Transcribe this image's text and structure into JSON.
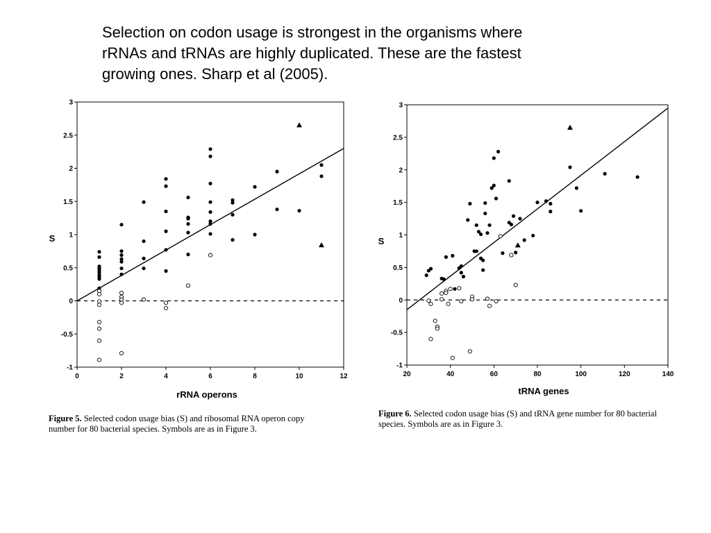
{
  "slide": {
    "title_lines": [
      "Selection on codon usage is strongest in the organisms where",
      "rRNAs and tRNAs are highly duplicated. These are the fastest",
      "growing ones. Sharp et al (2005)."
    ]
  },
  "chart_data": [
    {
      "type": "scatter",
      "xlabel": "rRNA operons",
      "ylabel": "S",
      "xlim": [
        0,
        12
      ],
      "ylim": [
        -1,
        3
      ],
      "x_ticks": [
        "0",
        "2",
        "4",
        "6",
        "8",
        "10",
        "12"
      ],
      "y_ticks": [
        "-1",
        "-0.5",
        "0",
        "0.5",
        "1",
        "1.5",
        "2",
        "2.5",
        "3"
      ],
      "reference_line": {
        "y": 0,
        "style": "dashed"
      },
      "regression_line": {
        "x": [
          0,
          12
        ],
        "y": [
          0.0,
          2.3
        ]
      },
      "caption": {
        "label": "Figure 5.",
        "text_lines": [
          "Selected codon usage bias (S) and ribosomal RNA operon copy",
          "number for 80 bacterial species. Symbols are as in Figure 3."
        ]
      },
      "series": [
        {
          "marker": "filled-circle",
          "points": [
            [
              1,
              0.74
            ],
            [
              1,
              0.66
            ],
            [
              1,
              0.52
            ],
            [
              1,
              0.49
            ],
            [
              1,
              0.46
            ],
            [
              1,
              0.43
            ],
            [
              1,
              0.39
            ],
            [
              1,
              0.36
            ],
            [
              1,
              0.33
            ],
            [
              1,
              0.19
            ],
            [
              1,
              0.16
            ],
            [
              2,
              1.15
            ],
            [
              2,
              0.75
            ],
            [
              2,
              0.69
            ],
            [
              2,
              0.63
            ],
            [
              2,
              0.59
            ],
            [
              2,
              0.49
            ],
            [
              2,
              0.4
            ],
            [
              3,
              1.49
            ],
            [
              3,
              0.9
            ],
            [
              3,
              0.64
            ],
            [
              3,
              0.49
            ],
            [
              4,
              1.84
            ],
            [
              4,
              1.73
            ],
            [
              4,
              1.35
            ],
            [
              4,
              1.05
            ],
            [
              4,
              0.77
            ],
            [
              4,
              0.45
            ],
            [
              5,
              1.56
            ],
            [
              5,
              1.26
            ],
            [
              5,
              1.24
            ],
            [
              5,
              1.16
            ],
            [
              5,
              1.03
            ],
            [
              5,
              0.7
            ],
            [
              6,
              2.29
            ],
            [
              6,
              2.18
            ],
            [
              6,
              1.77
            ],
            [
              6,
              1.49
            ],
            [
              6,
              1.34
            ],
            [
              6,
              1.2
            ],
            [
              6,
              1.16
            ],
            [
              6,
              1.01
            ],
            [
              7,
              1.52
            ],
            [
              7,
              1.48
            ],
            [
              7,
              1.3
            ],
            [
              7,
              0.92
            ],
            [
              8,
              1.72
            ],
            [
              8,
              1.0
            ],
            [
              9,
              1.95
            ],
            [
              9,
              1.38
            ],
            [
              10,
              1.36
            ],
            [
              11,
              2.05
            ],
            [
              11,
              1.88
            ]
          ]
        },
        {
          "marker": "open-circle",
          "points": [
            [
              1,
              0.15
            ],
            [
              1,
              0.1
            ],
            [
              1,
              -0.01
            ],
            [
              1,
              -0.06
            ],
            [
              1,
              -0.32
            ],
            [
              1,
              -0.42
            ],
            [
              1,
              -0.6
            ],
            [
              1,
              -0.89
            ],
            [
              2,
              0.12
            ],
            [
              2,
              0.06
            ],
            [
              2,
              0.02
            ],
            [
              2,
              -0.03
            ],
            [
              2,
              -0.79
            ],
            [
              3,
              0.02
            ],
            [
              4,
              -0.03
            ],
            [
              4,
              -0.11
            ],
            [
              5,
              0.23
            ],
            [
              6,
              0.69
            ]
          ]
        },
        {
          "marker": "filled-triangle",
          "points": [
            [
              10,
              2.65
            ],
            [
              11,
              0.84
            ]
          ]
        }
      ]
    },
    {
      "type": "scatter",
      "xlabel": "tRNA genes",
      "ylabel": "S",
      "xlim": [
        20,
        140
      ],
      "ylim": [
        -1,
        3
      ],
      "x_ticks": [
        "20",
        "40",
        "60",
        "80",
        "100",
        "120",
        "140"
      ],
      "y_ticks": [
        "-1",
        "-0.5",
        "0",
        "0.5",
        "1",
        "1.5",
        "2",
        "2.5",
        "3"
      ],
      "reference_line": {
        "y": 0,
        "style": "dashed"
      },
      "regression_line": {
        "x": [
          20,
          140
        ],
        "y": [
          -0.15,
          2.95
        ]
      },
      "caption": {
        "label": "Figure 6.",
        "text_lines": [
          "Selected codon usage bias (S) and tRNA gene number for 80 bacterial",
          "species. Symbols are as in Figure 3."
        ]
      },
      "series": [
        {
          "marker": "filled-circle",
          "points": [
            [
              29,
              0.38
            ],
            [
              30,
              0.45
            ],
            [
              31,
              0.48
            ],
            [
              36,
              0.33
            ],
            [
              37,
              0.32
            ],
            [
              38,
              0.66
            ],
            [
              41,
              0.68
            ],
            [
              42,
              0.17
            ],
            [
              44,
              0.49
            ],
            [
              45,
              0.52
            ],
            [
              45,
              0.42
            ],
            [
              46,
              0.36
            ],
            [
              48,
              1.23
            ],
            [
              49,
              1.48
            ],
            [
              51,
              0.75
            ],
            [
              52,
              1.15
            ],
            [
              52,
              0.75
            ],
            [
              53,
              1.05
            ],
            [
              54,
              1.01
            ],
            [
              54,
              0.64
            ],
            [
              55,
              0.61
            ],
            [
              55,
              0.46
            ],
            [
              56,
              1.33
            ],
            [
              56,
              1.49
            ],
            [
              57,
              1.03
            ],
            [
              58,
              1.15
            ],
            [
              59,
              1.72
            ],
            [
              60,
              1.76
            ],
            [
              60,
              2.18
            ],
            [
              61,
              1.56
            ],
            [
              62,
              2.28
            ],
            [
              64,
              0.72
            ],
            [
              67,
              1.83
            ],
            [
              67,
              1.19
            ],
            [
              68,
              1.16
            ],
            [
              69,
              1.29
            ],
            [
              70,
              0.73
            ],
            [
              72,
              1.25
            ],
            [
              74,
              0.92
            ],
            [
              78,
              0.99
            ],
            [
              80,
              1.5
            ],
            [
              84,
              1.52
            ],
            [
              86,
              1.36
            ],
            [
              86,
              1.48
            ],
            [
              95,
              2.04
            ],
            [
              98,
              1.72
            ],
            [
              100,
              1.37
            ],
            [
              111,
              1.94
            ],
            [
              126,
              1.89
            ]
          ]
        },
        {
          "marker": "open-circle",
          "points": [
            [
              30,
              -0.01
            ],
            [
              31,
              -0.06
            ],
            [
              31,
              -0.6
            ],
            [
              33,
              -0.32
            ],
            [
              34,
              -0.41
            ],
            [
              34,
              -0.44
            ],
            [
              36,
              0.1
            ],
            [
              36,
              0.01
            ],
            [
              38,
              0.14
            ],
            [
              38,
              0.11
            ],
            [
              39,
              -0.06
            ],
            [
              40,
              0.17
            ],
            [
              41,
              -0.89
            ],
            [
              44,
              0.18
            ],
            [
              45,
              -0.02
            ],
            [
              49,
              -0.79
            ],
            [
              50,
              0.05
            ],
            [
              50,
              0.01
            ],
            [
              57,
              0.02
            ],
            [
              58,
              -0.09
            ],
            [
              61,
              -0.02
            ],
            [
              63,
              0.98
            ],
            [
              68,
              0.69
            ],
            [
              70,
              0.23
            ]
          ]
        },
        {
          "marker": "filled-triangle",
          "points": [
            [
              95,
              2.65
            ],
            [
              71,
              0.84
            ]
          ]
        }
      ]
    }
  ]
}
